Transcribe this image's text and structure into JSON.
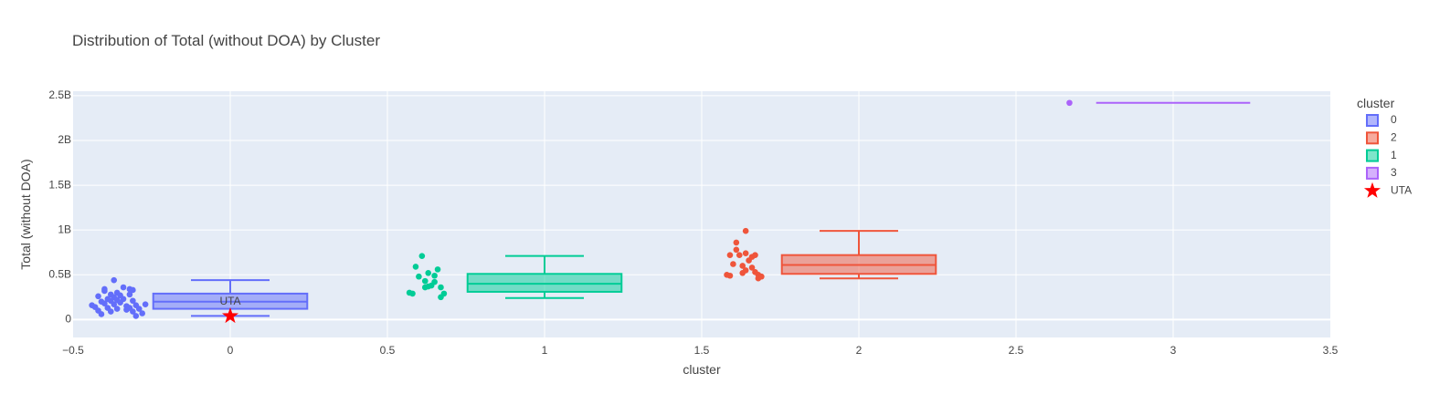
{
  "chart_data": {
    "type": "box",
    "title": "Distribution of Total (without DOA) by Cluster",
    "xlabel": "cluster",
    "ylabel": "Total (without DOA)",
    "xlim": [
      -0.5,
      3.5
    ],
    "ylim": [
      -0.2,
      2.55
    ],
    "x_ticks": [
      -0.5,
      0,
      0.5,
      1,
      1.5,
      2,
      2.5,
      3,
      3.5
    ],
    "x_tick_labels": [
      "−0.5",
      "0",
      "0.5",
      "1",
      "1.5",
      "2",
      "2.5",
      "3",
      "3.5"
    ],
    "y_ticks": [
      0,
      0.5,
      1,
      1.5,
      2,
      2.5
    ],
    "y_tick_labels": [
      "0",
      "0.5B",
      "1B",
      "1.5B",
      "2B",
      "2.5B"
    ],
    "y_unit": "billions",
    "grid": true,
    "legend_title": "cluster",
    "legend_placement": "right",
    "series": [
      {
        "name": "0",
        "x": 0,
        "color": "#636efa",
        "box": {
          "q1": 0.12,
          "median": 0.2,
          "q3": 0.29,
          "lowerfence": 0.04,
          "upperfence": 0.44
        },
        "points": [
          [
            -0.44,
            0.16
          ],
          [
            -0.43,
            0.14
          ],
          [
            -0.42,
            0.26
          ],
          [
            -0.42,
            0.1
          ],
          [
            -0.41,
            0.2
          ],
          [
            -0.41,
            0.06
          ],
          [
            -0.4,
            0.32
          ],
          [
            -0.4,
            0.18
          ],
          [
            -0.4,
            0.34
          ],
          [
            -0.39,
            0.13
          ],
          [
            -0.39,
            0.23
          ],
          [
            -0.38,
            0.21
          ],
          [
            -0.38,
            0.09
          ],
          [
            -0.38,
            0.28
          ],
          [
            -0.37,
            0.17
          ],
          [
            -0.37,
            0.44
          ],
          [
            -0.37,
            0.25
          ],
          [
            -0.36,
            0.12
          ],
          [
            -0.36,
            0.22
          ],
          [
            -0.36,
            0.3
          ],
          [
            -0.35,
            0.27
          ],
          [
            -0.35,
            0.19
          ],
          [
            -0.34,
            0.36
          ],
          [
            -0.34,
            0.23
          ],
          [
            -0.33,
            0.15
          ],
          [
            -0.33,
            0.11
          ],
          [
            -0.32,
            0.34
          ],
          [
            -0.32,
            0.28
          ],
          [
            -0.32,
            0.13
          ],
          [
            -0.31,
            0.09
          ],
          [
            -0.31,
            0.21
          ],
          [
            -0.31,
            0.33
          ],
          [
            -0.3,
            0.04
          ],
          [
            -0.3,
            0.16
          ],
          [
            -0.29,
            0.12
          ],
          [
            -0.28,
            0.07
          ],
          [
            -0.27,
            0.17
          ]
        ]
      },
      {
        "name": "2",
        "x": 2,
        "color": "#ef553b",
        "box": {
          "q1": 0.51,
          "median": 0.61,
          "q3": 0.72,
          "lowerfence": 0.46,
          "upperfence": 0.99
        },
        "points": [
          [
            1.58,
            0.5
          ],
          [
            1.59,
            0.49
          ],
          [
            1.59,
            0.72
          ],
          [
            1.6,
            0.62
          ],
          [
            1.61,
            0.86
          ],
          [
            1.61,
            0.78
          ],
          [
            1.62,
            0.72
          ],
          [
            1.63,
            0.6
          ],
          [
            1.63,
            0.52
          ],
          [
            1.64,
            0.74
          ],
          [
            1.64,
            0.99
          ],
          [
            1.64,
            0.55
          ],
          [
            1.65,
            0.66
          ],
          [
            1.66,
            0.7
          ],
          [
            1.66,
            0.58
          ],
          [
            1.67,
            0.53
          ],
          [
            1.67,
            0.72
          ],
          [
            1.68,
            0.5
          ],
          [
            1.68,
            0.46
          ],
          [
            1.69,
            0.48
          ]
        ]
      },
      {
        "name": "1",
        "x": 1,
        "color": "#00cc96",
        "box": {
          "q1": 0.31,
          "median": 0.4,
          "q3": 0.51,
          "lowerfence": 0.24,
          "upperfence": 0.71
        },
        "points": [
          [
            0.57,
            0.3
          ],
          [
            0.58,
            0.29
          ],
          [
            0.59,
            0.59
          ],
          [
            0.6,
            0.48
          ],
          [
            0.61,
            0.71
          ],
          [
            0.62,
            0.43
          ],
          [
            0.62,
            0.36
          ],
          [
            0.63,
            0.52
          ],
          [
            0.63,
            0.37
          ],
          [
            0.64,
            0.38
          ],
          [
            0.65,
            0.49
          ],
          [
            0.65,
            0.42
          ],
          [
            0.66,
            0.56
          ],
          [
            0.67,
            0.36
          ],
          [
            0.67,
            0.25
          ],
          [
            0.68,
            0.29
          ]
        ]
      },
      {
        "name": "3",
        "x": 3,
        "color": "#ab63fa",
        "box": {
          "q1": 2.42,
          "median": 2.42,
          "q3": 2.42,
          "lowerfence": 2.42,
          "upperfence": 2.42
        },
        "points": [
          [
            2.67,
            2.42
          ]
        ]
      },
      {
        "name": "UTA",
        "marker": "star",
        "color": "#ff0000",
        "points": [
          [
            0,
            0.04
          ]
        ],
        "text": "UTA"
      }
    ]
  }
}
